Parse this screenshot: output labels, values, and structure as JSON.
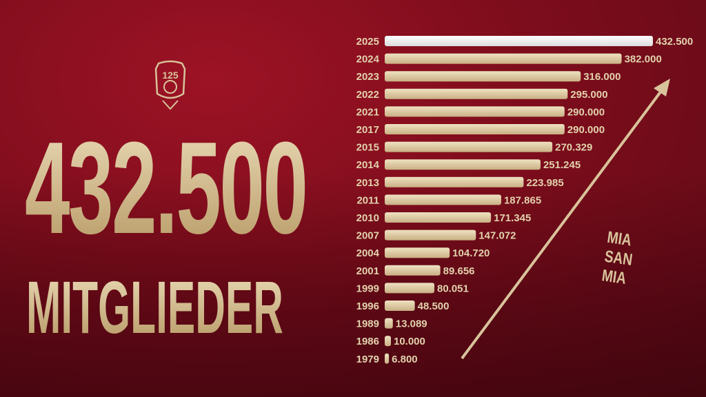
{
  "headline": {
    "value": "432.500",
    "label": "MITGLIEDER"
  },
  "crest": {
    "text": "125"
  },
  "slogan": [
    "MIA",
    "SAN",
    "MIA"
  ],
  "colors": {
    "background": "#7e0d1c",
    "gold": "#d9c39b",
    "highlight": "#ffffff"
  },
  "chart_data": {
    "type": "bar",
    "orientation": "horizontal",
    "categories": [
      "2025",
      "2024",
      "2023",
      "2022",
      "2021",
      "2017",
      "2015",
      "2014",
      "2013",
      "2011",
      "2010",
      "2007",
      "2004",
      "2001",
      "1999",
      "1996",
      "1989",
      "1986",
      "1979"
    ],
    "values": [
      432500,
      382000,
      316000,
      295000,
      290000,
      290000,
      270329,
      251245,
      223985,
      187865,
      171345,
      147072,
      104720,
      89656,
      80051,
      48500,
      13089,
      10000,
      6800
    ],
    "labels": [
      "432.500",
      "382.000",
      "316.000",
      "295.000",
      "290.000",
      "290.000",
      "270.329",
      "251.245",
      "223.985",
      "187.865",
      "171.345",
      "147.072",
      "104.720",
      "89.656",
      "80.051",
      "48.500",
      "13.089",
      "10.000",
      "6.800"
    ],
    "highlight": "2025",
    "grid": false
  }
}
